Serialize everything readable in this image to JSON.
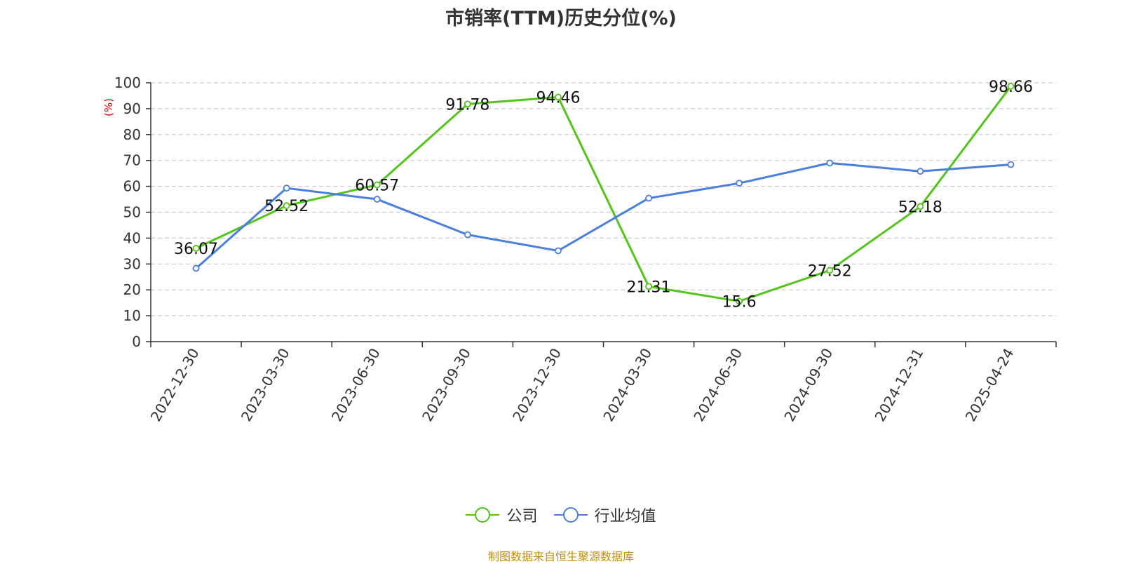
{
  "chart_data": {
    "type": "line",
    "title": "市销率(TTM)历史分位(%)",
    "ylabel": "(%)",
    "xlabel": "",
    "ylim": [
      0,
      100
    ],
    "yticks": [
      0,
      10,
      20,
      30,
      40,
      50,
      60,
      70,
      80,
      90,
      100
    ],
    "categories": [
      "2022-12-30",
      "2023-03-30",
      "2023-06-30",
      "2023-09-30",
      "2023-12-30",
      "2024-03-30",
      "2024-06-30",
      "2024-09-30",
      "2024-12-31",
      "2025-04-24"
    ],
    "series": [
      {
        "name": "公司",
        "color": "#52c41a",
        "values": [
          36.07,
          52.52,
          60.57,
          91.78,
          94.46,
          21.31,
          15.6,
          27.52,
          52.18,
          98.66
        ],
        "data_labels": [
          "36.07",
          "52.52",
          "60.57",
          "91.78",
          "94.46",
          "21.31",
          "15.6",
          "27.52",
          "52.18",
          "98.66"
        ]
      },
      {
        "name": "行业均值",
        "color": "#4a7fdc",
        "values": [
          28.3,
          59.3,
          55.0,
          41.3,
          35.1,
          55.4,
          61.2,
          69.0,
          65.8,
          68.4
        ]
      }
    ],
    "grid": true,
    "legend_position": "bottom-center"
  },
  "source_text": "制图数据来自恒生聚源数据库"
}
